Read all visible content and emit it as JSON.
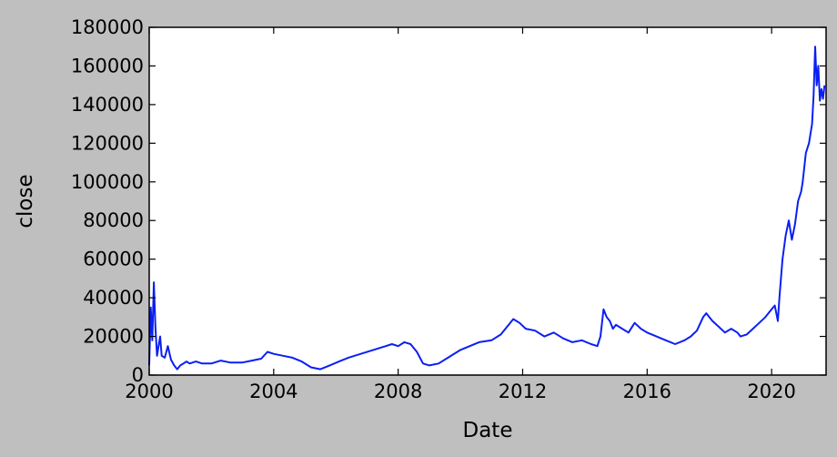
{
  "chart_data": {
    "type": "line",
    "title": "",
    "xlabel": "Date",
    "ylabel": "close",
    "xlim": [
      2000.0,
      2021.75
    ],
    "ylim": [
      0,
      180000
    ],
    "xticks": [
      2000,
      2004,
      2008,
      2012,
      2016,
      2020
    ],
    "yticks": [
      0,
      20000,
      40000,
      60000,
      80000,
      100000,
      120000,
      140000,
      160000,
      180000
    ],
    "grid": false,
    "legend": "none",
    "series": [
      {
        "color": "#0a1ff2",
        "x": [
          2000.0,
          2000.05,
          2000.1,
          2000.15,
          2000.2,
          2000.25,
          2000.3,
          2000.35,
          2000.4,
          2000.5,
          2000.6,
          2000.7,
          2000.8,
          2000.9,
          2001.0,
          2001.1,
          2001.2,
          2001.3,
          2001.5,
          2001.7,
          2002.0,
          2002.3,
          2002.6,
          2003.0,
          2003.3,
          2003.6,
          2003.8,
          2004.0,
          2004.3,
          2004.6,
          2004.9,
          2005.2,
          2005.5,
          2005.8,
          2006.1,
          2006.4,
          2006.8,
          2007.2,
          2007.6,
          2007.8,
          2008.0,
          2008.2,
          2008.4,
          2008.6,
          2008.8,
          2009.0,
          2009.3,
          2009.6,
          2010.0,
          2010.3,
          2010.6,
          2011.0,
          2011.3,
          2011.5,
          2011.7,
          2011.9,
          2012.1,
          2012.4,
          2012.7,
          2013.0,
          2013.3,
          2013.6,
          2013.9,
          2014.2,
          2014.4,
          2014.5,
          2014.6,
          2014.7,
          2014.8,
          2014.9,
          2015.0,
          2015.2,
          2015.4,
          2015.6,
          2015.8,
          2016.0,
          2016.3,
          2016.6,
          2016.9,
          2017.2,
          2017.4,
          2017.6,
          2017.8,
          2017.9,
          2018.1,
          2018.3,
          2018.5,
          2018.7,
          2018.9,
          2019.0,
          2019.2,
          2019.4,
          2019.6,
          2019.8,
          2020.0,
          2020.1,
          2020.2,
          2020.25,
          2020.35,
          2020.45,
          2020.55,
          2020.65,
          2020.75,
          2020.85,
          2020.95,
          2021.0,
          2021.1,
          2021.2,
          2021.3,
          2021.35,
          2021.4,
          2021.45,
          2021.5,
          2021.55,
          2021.6,
          2021.65,
          2021.7
        ],
        "y": [
          5000,
          35000,
          18000,
          48000,
          25000,
          10000,
          15000,
          20000,
          10000,
          9000,
          15000,
          8000,
          5000,
          3000,
          5000,
          6000,
          7000,
          6000,
          7000,
          6000,
          6000,
          7500,
          6500,
          6500,
          7500,
          8500,
          12000,
          11000,
          10000,
          9000,
          7000,
          4000,
          3000,
          5000,
          7000,
          9000,
          11000,
          13000,
          15000,
          16000,
          15000,
          17000,
          16000,
          12000,
          6000,
          5000,
          6000,
          9000,
          13000,
          15000,
          17000,
          18000,
          21000,
          25000,
          29000,
          27000,
          24000,
          23000,
          20000,
          22000,
          19000,
          17000,
          18000,
          16000,
          15000,
          20000,
          34000,
          30000,
          28000,
          24000,
          26000,
          24000,
          22000,
          27000,
          24000,
          22000,
          20000,
          18000,
          16000,
          18000,
          20000,
          23000,
          30000,
          32000,
          28000,
          25000,
          22000,
          24000,
          22000,
          20000,
          21000,
          24000,
          27000,
          30000,
          34000,
          36000,
          28000,
          40000,
          60000,
          72000,
          80000,
          70000,
          78000,
          90000,
          95000,
          100000,
          115000,
          120000,
          130000,
          145000,
          170000,
          150000,
          160000,
          142000,
          148000,
          143000,
          150000
        ]
      }
    ]
  }
}
